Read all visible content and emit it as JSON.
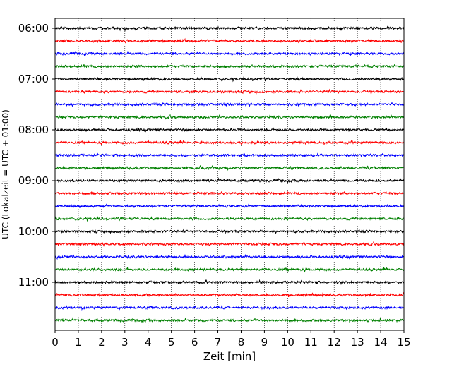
{
  "chart_data": {
    "type": "line",
    "title": "",
    "xlabel": "Zeit  [min]",
    "ylabel": "UTC (Lokalzeit = UTC + 01:00)",
    "xlim": [
      0,
      15
    ],
    "xticks": [
      0,
      1,
      2,
      3,
      4,
      5,
      6,
      7,
      8,
      9,
      10,
      11,
      12,
      13,
      14,
      15
    ],
    "x_grid": true,
    "grid_style": "dotted",
    "row_minutes": 15,
    "y_ticks": [
      {
        "label": "06:00",
        "row": 0
      },
      {
        "label": "07:00",
        "row": 4
      },
      {
        "label": "08:00",
        "row": 8
      },
      {
        "label": "09:00",
        "row": 12
      },
      {
        "label": "10:00",
        "row": 16
      },
      {
        "label": "11:00",
        "row": 20
      }
    ],
    "traces": [
      {
        "start": "06:00",
        "color": "#000000"
      },
      {
        "start": "06:15",
        "color": "#ff0000"
      },
      {
        "start": "06:30",
        "color": "#0000ff"
      },
      {
        "start": "06:45",
        "color": "#008000"
      },
      {
        "start": "07:00",
        "color": "#000000"
      },
      {
        "start": "07:15",
        "color": "#ff0000"
      },
      {
        "start": "07:30",
        "color": "#0000ff"
      },
      {
        "start": "07:45",
        "color": "#008000"
      },
      {
        "start": "08:00",
        "color": "#000000"
      },
      {
        "start": "08:15",
        "color": "#ff0000"
      },
      {
        "start": "08:30",
        "color": "#0000ff"
      },
      {
        "start": "08:45",
        "color": "#008000"
      },
      {
        "start": "09:00",
        "color": "#000000"
      },
      {
        "start": "09:15",
        "color": "#ff0000"
      },
      {
        "start": "09:30",
        "color": "#0000ff"
      },
      {
        "start": "09:45",
        "color": "#008000"
      },
      {
        "start": "10:00",
        "color": "#000000"
      },
      {
        "start": "10:15",
        "color": "#ff0000"
      },
      {
        "start": "10:30",
        "color": "#0000ff"
      },
      {
        "start": "10:45",
        "color": "#008000"
      },
      {
        "start": "11:00",
        "color": "#000000"
      },
      {
        "start": "11:15",
        "color": "#ff0000"
      },
      {
        "start": "11:30",
        "color": "#0000ff"
      },
      {
        "start": "11:45",
        "color": "#008000"
      }
    ]
  }
}
